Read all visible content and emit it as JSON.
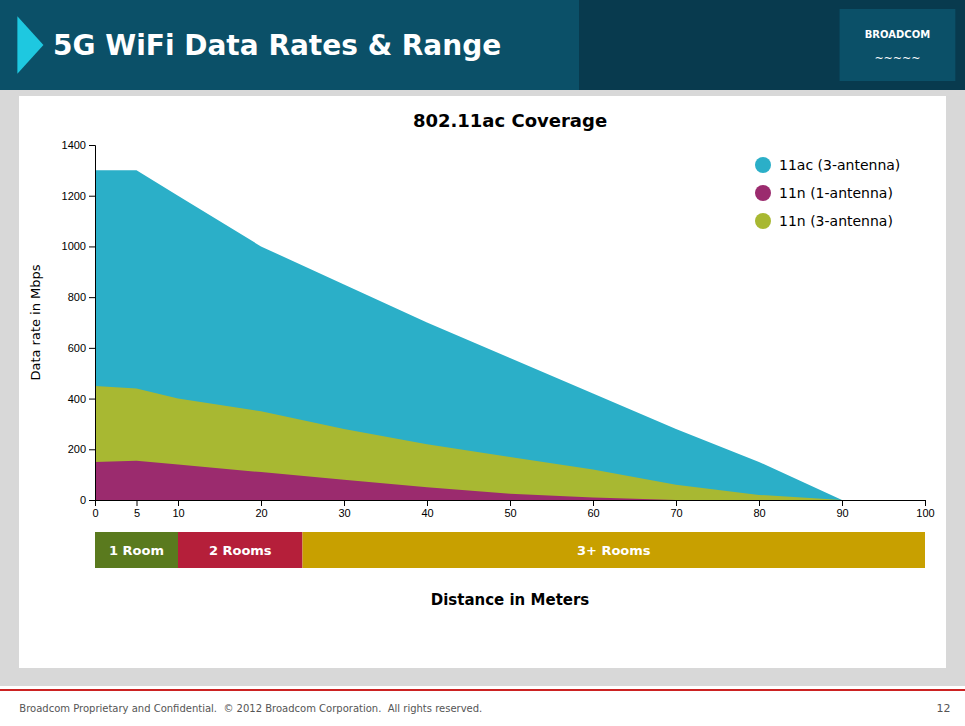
{
  "chart_data": [
    {
      "type": "area",
      "title": "802.11ac Coverage",
      "xlabel": "Distance in Meters",
      "ylabel": "Data rate in Mbps",
      "x": [
        0,
        5,
        10,
        20,
        30,
        40,
        50,
        60,
        70,
        80,
        90,
        100
      ],
      "series": [
        {
          "name": "11ac (3-antenna)",
          "color": "#2bafc8",
          "values": [
            1300,
            1300,
            1200,
            1000,
            850,
            700,
            560,
            420,
            280,
            150,
            0,
            0
          ]
        },
        {
          "name": "11n (1-antenna)",
          "color": "#9b2b6e",
          "values": [
            150,
            155,
            140,
            110,
            80,
            50,
            25,
            10,
            0,
            0,
            0,
            0
          ]
        },
        {
          "name": "11n (3-antenna)",
          "color": "#a8b832",
          "values": [
            450,
            440,
            400,
            350,
            280,
            220,
            170,
            120,
            60,
            20,
            0,
            0
          ]
        }
      ],
      "xlim": [
        0,
        100
      ],
      "ylim": [
        0,
        1400
      ],
      "xticks": [
        0,
        5,
        10,
        20,
        30,
        40,
        50,
        60,
        70,
        80,
        90,
        100
      ],
      "yticks": [
        0,
        200,
        400,
        600,
        800,
        1000,
        1200,
        1400
      ],
      "grid": false,
      "legend": "upper right",
      "annotations": [
        "5G WiFi Data Rates & Range",
        "BROADCOM",
        "~~~~~",
        "Broadcom Proprietary and Confidential.  © 2012 Broadcom Corporation.  All rights reserved.",
        "12"
      ]
    },
    {
      "type": "bar",
      "orientation": "horizontal",
      "stacked": true,
      "series": [
        {
          "name": "1 Room",
          "color": "#5a7a1e",
          "values": [
            10
          ]
        },
        {
          "name": "2 Rooms",
          "color": "#b51f3a",
          "values": [
            15
          ]
        },
        {
          "name": "3+ Rooms",
          "color": "#c8a000",
          "values": [
            75
          ]
        }
      ],
      "xlim": [
        0,
        100
      ],
      "tick_labels": false
    }
  ]
}
